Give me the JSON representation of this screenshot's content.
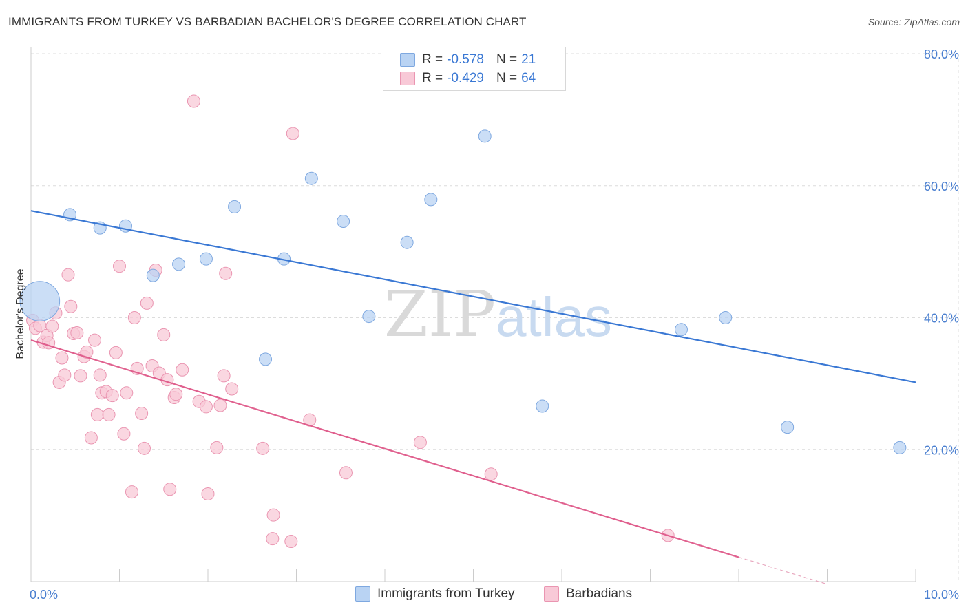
{
  "header": {
    "title": "IMMIGRANTS FROM TURKEY VS BARBADIAN BACHELOR'S DEGREE CORRELATION CHART",
    "source": "Source: ZipAtlas.com"
  },
  "legend": {
    "rows": [
      {
        "r_label": "R =",
        "r_value": "-0.578",
        "n_label": "N =",
        "n_value": "21"
      },
      {
        "r_label": "R =",
        "r_value": "-0.429",
        "n_label": "N =",
        "n_value": "64"
      }
    ]
  },
  "bottom_legend": [
    "Immigrants from Turkey",
    "Barbadians"
  ],
  "watermark": {
    "part1": "ZIP",
    "part2": "atlas"
  },
  "colors": {
    "blue_fill": "#b9d3f3",
    "blue_stroke": "#7ea8e0",
    "blue_line": "#3a78d4",
    "pink_fill": "#f8c9d7",
    "pink_stroke": "#ea95b1",
    "pink_line": "#e0608e",
    "grid": "#dcdcdc",
    "tick_text": "#4a7fd0"
  },
  "chart_data": {
    "type": "scatter",
    "title": "IMMIGRANTS FROM TURKEY VS BARBADIAN BACHELOR'S DEGREE CORRELATION CHART",
    "xlabel": "",
    "ylabel": "Bachelor's Degree",
    "xlim": [
      0,
      10
    ],
    "ylim": [
      0,
      80
    ],
    "x_tick_labels": [
      {
        "value": 0,
        "label": "0.0%"
      },
      {
        "value": 10,
        "label": "10.0%"
      }
    ],
    "y_tick_labels": [
      {
        "value": 20,
        "label": "20.0%"
      },
      {
        "value": 40,
        "label": "40.0%"
      },
      {
        "value": 60,
        "label": "60.0%"
      },
      {
        "value": 80,
        "label": "80.0%"
      }
    ],
    "series": [
      {
        "name": "Immigrants from Turkey",
        "color": "blue",
        "R": -0.578,
        "N": 21,
        "trend": {
          "x": [
            0,
            10
          ],
          "y": [
            56.2,
            30.2
          ]
        },
        "points": [
          {
            "x": 0.1,
            "y": 42.5,
            "s": 3.2
          },
          {
            "x": 0.44,
            "y": 55.6,
            "s": 1
          },
          {
            "x": 0.78,
            "y": 53.6,
            "s": 1
          },
          {
            "x": 1.07,
            "y": 53.9,
            "s": 1
          },
          {
            "x": 1.38,
            "y": 46.4,
            "s": 1
          },
          {
            "x": 1.67,
            "y": 48.1,
            "s": 1
          },
          {
            "x": 1.98,
            "y": 48.9,
            "s": 1
          },
          {
            "x": 2.3,
            "y": 56.8,
            "s": 1
          },
          {
            "x": 2.65,
            "y": 33.7,
            "s": 1
          },
          {
            "x": 2.86,
            "y": 48.9,
            "s": 1
          },
          {
            "x": 3.17,
            "y": 61.1,
            "s": 1
          },
          {
            "x": 3.53,
            "y": 54.6,
            "s": 1
          },
          {
            "x": 3.82,
            "y": 40.2,
            "s": 1
          },
          {
            "x": 4.25,
            "y": 51.4,
            "s": 1
          },
          {
            "x": 4.52,
            "y": 57.9,
            "s": 1
          },
          {
            "x": 5.13,
            "y": 67.5,
            "s": 1
          },
          {
            "x": 5.78,
            "y": 26.6,
            "s": 1
          },
          {
            "x": 7.35,
            "y": 38.2,
            "s": 1
          },
          {
            "x": 7.85,
            "y": 40.0,
            "s": 1
          },
          {
            "x": 8.55,
            "y": 23.4,
            "s": 1
          },
          {
            "x": 9.82,
            "y": 20.3,
            "s": 1
          }
        ]
      },
      {
        "name": "Barbadians",
        "color": "pink",
        "R": -0.429,
        "N": 64,
        "trend": {
          "x": [
            0,
            8.0
          ],
          "y": [
            36.6,
            3.7
          ]
        },
        "trend_dash": {
          "x": [
            8.0,
            9.0
          ],
          "y": [
            3.7,
            -0.4
          ]
        },
        "points": [
          {
            "x": 0.02,
            "y": 39.6
          },
          {
            "x": 0.05,
            "y": 38.4
          },
          {
            "x": 0.1,
            "y": 38.8
          },
          {
            "x": 0.14,
            "y": 36.3
          },
          {
            "x": 0.18,
            "y": 37.3
          },
          {
            "x": 0.2,
            "y": 36.2
          },
          {
            "x": 0.24,
            "y": 38.7
          },
          {
            "x": 0.28,
            "y": 40.7
          },
          {
            "x": 0.32,
            "y": 30.2
          },
          {
            "x": 0.35,
            "y": 33.9
          },
          {
            "x": 0.38,
            "y": 31.3
          },
          {
            "x": 0.42,
            "y": 46.5
          },
          {
            "x": 0.45,
            "y": 41.7
          },
          {
            "x": 0.48,
            "y": 37.6
          },
          {
            "x": 0.52,
            "y": 37.7
          },
          {
            "x": 0.56,
            "y": 31.2
          },
          {
            "x": 0.6,
            "y": 34.1
          },
          {
            "x": 0.63,
            "y": 34.8
          },
          {
            "x": 0.68,
            "y": 21.8
          },
          {
            "x": 0.72,
            "y": 36.6
          },
          {
            "x": 0.75,
            "y": 25.3
          },
          {
            "x": 0.78,
            "y": 31.3
          },
          {
            "x": 0.8,
            "y": 28.6
          },
          {
            "x": 0.85,
            "y": 28.8
          },
          {
            "x": 0.88,
            "y": 25.3
          },
          {
            "x": 0.92,
            "y": 28.2
          },
          {
            "x": 0.96,
            "y": 34.7
          },
          {
            "x": 1.0,
            "y": 47.8
          },
          {
            "x": 1.05,
            "y": 22.4
          },
          {
            "x": 1.08,
            "y": 28.6
          },
          {
            "x": 1.14,
            "y": 13.6
          },
          {
            "x": 1.17,
            "y": 40.0
          },
          {
            "x": 1.2,
            "y": 32.3
          },
          {
            "x": 1.25,
            "y": 25.5
          },
          {
            "x": 1.28,
            "y": 20.2
          },
          {
            "x": 1.31,
            "y": 42.2
          },
          {
            "x": 1.37,
            "y": 32.7
          },
          {
            "x": 1.41,
            "y": 47.2
          },
          {
            "x": 1.45,
            "y": 31.6
          },
          {
            "x": 1.5,
            "y": 37.4
          },
          {
            "x": 1.54,
            "y": 30.6
          },
          {
            "x": 1.57,
            "y": 14.0
          },
          {
            "x": 1.62,
            "y": 27.9
          },
          {
            "x": 1.64,
            "y": 28.4
          },
          {
            "x": 1.71,
            "y": 32.1
          },
          {
            "x": 1.84,
            "y": 72.8
          },
          {
            "x": 1.9,
            "y": 27.3
          },
          {
            "x": 1.98,
            "y": 26.5
          },
          {
            "x": 2.0,
            "y": 13.3
          },
          {
            "x": 2.1,
            "y": 20.3
          },
          {
            "x": 2.14,
            "y": 26.7
          },
          {
            "x": 2.18,
            "y": 31.2
          },
          {
            "x": 2.2,
            "y": 46.7
          },
          {
            "x": 2.27,
            "y": 29.2
          },
          {
            "x": 2.62,
            "y": 20.2
          },
          {
            "x": 2.73,
            "y": 6.5
          },
          {
            "x": 2.74,
            "y": 10.1
          },
          {
            "x": 2.94,
            "y": 6.1
          },
          {
            "x": 2.96,
            "y": 67.9
          },
          {
            "x": 3.15,
            "y": 24.5
          },
          {
            "x": 3.56,
            "y": 16.5
          },
          {
            "x": 4.4,
            "y": 21.1
          },
          {
            "x": 5.2,
            "y": 16.3
          },
          {
            "x": 7.2,
            "y": 7.0
          }
        ]
      }
    ]
  }
}
